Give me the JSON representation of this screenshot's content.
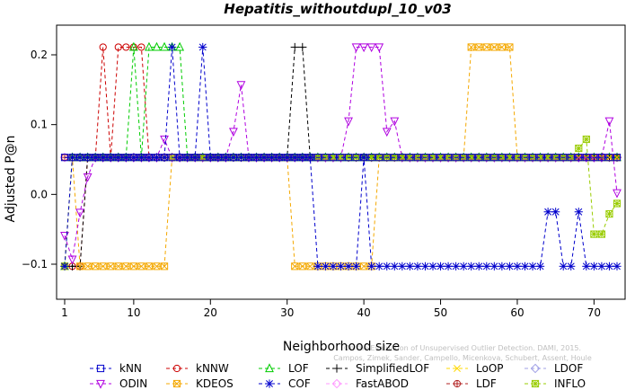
{
  "chart_data": {
    "type": "line",
    "title": "Hepatitis_withoutdupl_10_v03",
    "xlabel": "Neighborhood size",
    "ylabel": "Adjusted P@n",
    "xlim": [
      1,
      73
    ],
    "ylim": [
      -0.15,
      0.25
    ],
    "x_ticks": [
      1,
      10,
      20,
      30,
      40,
      50,
      60,
      70
    ],
    "y_ticks": [
      -0.1,
      0.0,
      0.1,
      0.2
    ],
    "x_tick_labels": [
      "1",
      "10",
      "20",
      "30",
      "40",
      "50",
      "60",
      "70"
    ],
    "y_tick_labels": [
      "−0.1",
      "0.0",
      "0.1",
      "0.2"
    ],
    "grid": false,
    "legend_position": "bottom",
    "watermark": "Campos, Zimek, Sander, Campello, Micenkova, Schubert, Assent, Houle: On the Evaluation of Unsupervised Outlier Detection. DAMI, 2015.",
    "series": [
      {
        "name": "kNN",
        "color": "#0000cc",
        "marker": "square",
        "segments": [
          [
            [
              1,
              0.053
            ],
            [
              73,
              0.053
            ]
          ]
        ]
      },
      {
        "name": "kNNW",
        "color": "#cc0000",
        "marker": "circle",
        "segments": [
          [
            [
              1,
              -0.103
            ],
            [
              3,
              -0.103
            ],
            [
              4,
              0.053
            ],
            [
              5,
              0.053
            ],
            [
              6,
              0.211
            ],
            [
              7,
              0.053
            ],
            [
              8,
              0.211
            ],
            [
              9,
              0.211
            ],
            [
              10,
              0.211
            ],
            [
              11,
              0.211
            ],
            [
              12,
              0.053
            ],
            [
              73,
              0.053
            ]
          ]
        ]
      },
      {
        "name": "LOF",
        "color": "#00cc00",
        "marker": "triangle-up",
        "segments": [
          [
            [
              1,
              -0.103
            ],
            [
              2,
              0.053
            ],
            [
              9,
              0.053
            ],
            [
              10,
              0.211
            ],
            [
              11,
              0.053
            ],
            [
              12,
              0.211
            ],
            [
              16,
              0.211
            ],
            [
              17,
              0.053
            ],
            [
              73,
              0.053
            ]
          ]
        ]
      },
      {
        "name": "SimplifiedLOF",
        "color": "#000000",
        "marker": "plus",
        "segments": [
          [
            [
              1,
              -0.103
            ],
            [
              3,
              -0.103
            ],
            [
              4,
              0.053
            ],
            [
              30,
              0.053
            ],
            [
              31,
              0.211
            ],
            [
              32,
              0.211
            ],
            [
              33,
              0.053
            ],
            [
              73,
              0.053
            ]
          ]
        ]
      },
      {
        "name": "LoOP",
        "color": "#ffd800",
        "marker": "x",
        "segments": [
          [
            [
              1,
              -0.103
            ],
            [
              2,
              0.053
            ],
            [
              73,
              0.053
            ]
          ]
        ]
      },
      {
        "name": "LDOF",
        "color": "#a0a0e6",
        "marker": "diamond",
        "segments": [
          [
            [
              1,
              0.053
            ],
            [
              73,
              0.053
            ]
          ]
        ]
      },
      {
        "name": "ODIN",
        "color": "#b000e0",
        "marker": "triangle-down",
        "segments": [
          [
            [
              1,
              -0.059
            ],
            [
              2,
              -0.093
            ],
            [
              3,
              -0.026
            ],
            [
              4,
              0.025
            ],
            [
              5,
              0.053
            ],
            [
              13,
              0.053
            ],
            [
              14,
              0.079
            ],
            [
              15,
              0.053
            ],
            [
              22,
              0.053
            ],
            [
              23,
              0.09
            ],
            [
              24,
              0.157
            ],
            [
              25,
              0.053
            ],
            [
              37,
              0.053
            ],
            [
              38,
              0.105
            ],
            [
              39,
              0.211
            ],
            [
              40,
              0.211
            ],
            [
              41,
              0.211
            ],
            [
              42,
              0.211
            ],
            [
              43,
              0.09
            ],
            [
              44,
              0.105
            ],
            [
              45,
              0.053
            ],
            [
              71,
              0.053
            ],
            [
              72,
              0.105
            ],
            [
              73,
              0.002
            ]
          ]
        ]
      },
      {
        "name": "KDEOS",
        "color": "#f4a800",
        "marker": "square-x",
        "segments": [
          [
            [
              1,
              -0.103
            ],
            [
              2,
              0.053
            ],
            [
              3,
              -0.103
            ],
            [
              14,
              -0.103
            ],
            [
              15,
              0.053
            ],
            [
              30,
              0.053
            ],
            [
              31,
              -0.103
            ],
            [
              41,
              -0.103
            ],
            [
              42,
              0.053
            ],
            [
              53,
              0.053
            ],
            [
              54,
              0.211
            ],
            [
              59,
              0.211
            ],
            [
              60,
              0.053
            ],
            [
              73,
              0.053
            ]
          ]
        ]
      },
      {
        "name": "COF",
        "color": "#0000cc",
        "marker": "asterisk",
        "segments": [
          [
            [
              1,
              -0.103
            ],
            [
              2,
              0.053
            ],
            [
              14,
              0.053
            ],
            [
              15,
              0.211
            ],
            [
              16,
              0.053
            ],
            [
              18,
              0.053
            ],
            [
              19,
              0.211
            ],
            [
              20,
              0.053
            ],
            [
              33,
              0.053
            ],
            [
              34,
              -0.103
            ],
            [
              39,
              -0.103
            ],
            [
              40,
              0.053
            ],
            [
              41,
              -0.103
            ],
            [
              63,
              -0.103
            ],
            [
              64,
              -0.025
            ],
            [
              65,
              -0.025
            ],
            [
              66,
              -0.103
            ],
            [
              67,
              -0.103
            ],
            [
              68,
              -0.025
            ],
            [
              69,
              -0.103
            ],
            [
              73,
              -0.103
            ]
          ]
        ]
      },
      {
        "name": "FastABOD",
        "color": "#ff99ff",
        "marker": "diamond",
        "segments": [
          [
            [
              1,
              0.053
            ],
            [
              73,
              0.053
            ]
          ]
        ]
      },
      {
        "name": "LDF",
        "color": "#b22222",
        "marker": "circle-plus",
        "segments": [
          [
            [
              1,
              0.053
            ],
            [
              73,
              0.053
            ]
          ]
        ]
      },
      {
        "name": "INFLO",
        "color": "#99cc00",
        "marker": "square-star",
        "segments": [
          [
            [
              1,
              -0.103
            ],
            [
              2,
              0.053
            ],
            [
              65,
              0.053
            ],
            [
              66,
              0.053
            ],
            [
              67,
              0.053
            ],
            [
              68,
              0.066
            ],
            [
              69,
              0.079
            ],
            [
              70,
              -0.057
            ],
            [
              71,
              -0.057
            ],
            [
              72,
              -0.028
            ],
            [
              73,
              -0.013
            ]
          ]
        ]
      }
    ]
  }
}
